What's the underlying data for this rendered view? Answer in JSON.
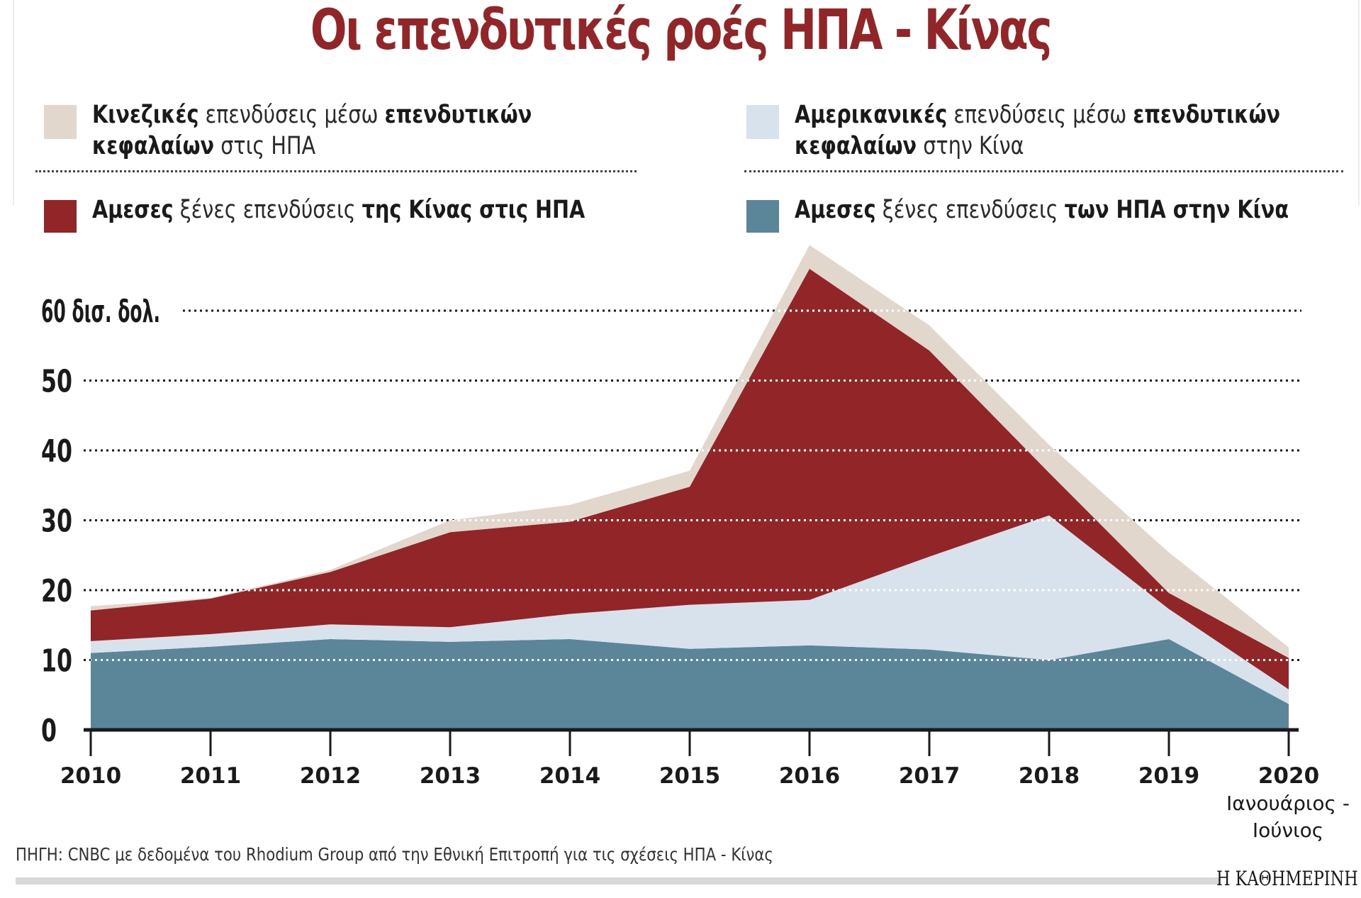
{
  "title": "Οι επενδυτικές ροές ΗΠΑ - Κίνας",
  "legend": {
    "chinese_funds": {
      "bold1": "Κινεζικές",
      "light1": " επενδύσεις μέσω ",
      "bold2": "επενδυτικών",
      "bold3": "κεφαλαίων",
      "light2": " στις ΗΠΑ",
      "color": "#e1d7cc"
    },
    "chinese_fdi": {
      "bold1": "Αμεσες",
      "light1": " ξένες επενδύσεις ",
      "bold2": "της Κίνας στις ΗΠΑ",
      "color": "#922527"
    },
    "us_funds": {
      "bold1": "Αμερικανικές",
      "light1": " επενδύσεις μέσω ",
      "bold2": "επενδυτικών",
      "bold3": "κεφαλαίων",
      "light2": " στην Κίνα",
      "color": "#d8e2ec"
    },
    "us_fdi": {
      "bold1": "Αμεσες",
      "light1": " ξένες επενδύσεις ",
      "bold2": "των ΗΠΑ στην Κίνα",
      "color": "#5b8699"
    }
  },
  "axis": {
    "y_ticks": [
      {
        "value": 0,
        "label": "0"
      },
      {
        "value": 10,
        "label": "10"
      },
      {
        "value": 20,
        "label": "20"
      },
      {
        "value": 30,
        "label": "30"
      },
      {
        "value": 40,
        "label": "40"
      },
      {
        "value": 50,
        "label": "50"
      },
      {
        "value": 60,
        "label": "60 δισ. δολ."
      }
    ],
    "x_sublabel_2020_line1": "Ιανουάριος -",
    "x_sublabel_2020_line2": "Ιούνιος"
  },
  "source": "ΠΗΓΗ: CNBC με δεδομένα του Rhodium Group από την Εθνική Επιτροπή για τις σχέσεις ΗΠΑ - Κίνας",
  "brand": "Η ΚΑΘΗΜΕΡΙΝΗ",
  "chart_data": {
    "type": "area",
    "stacked": true,
    "title": "Οι επενδυτικές ροές ΗΠΑ - Κίνας",
    "xlabel": "",
    "ylabel": "δισ. δολ.",
    "ylim": [
      0,
      70
    ],
    "grid": true,
    "legend_position": "top",
    "categories": [
      "2010",
      "2011",
      "2012",
      "2013",
      "2014",
      "2015",
      "2016",
      "2017",
      "2018",
      "2019",
      "2020"
    ],
    "category_note": {
      "2020": "Ιανουάριος - Ιούνιος"
    },
    "series": [
      {
        "name": "Αμεσες ξένες επενδύσεις των ΗΠΑ στην Κίνα",
        "color": "#5b8699",
        "values": [
          11.0,
          11.9,
          13.0,
          12.6,
          13.0,
          11.6,
          12.1,
          11.5,
          10.0,
          13.0,
          3.7
        ]
      },
      {
        "name": "Αμερικανικές επενδύσεις μέσω επενδυτικών κεφαλαίων στην Κίνα",
        "color": "#d8e2ec",
        "values": [
          1.7,
          1.8,
          2.1,
          2.1,
          3.6,
          6.3,
          6.5,
          13.3,
          20.7,
          4.3,
          2.1
        ]
      },
      {
        "name": "Αμεσες ξένες επενδύσεις της Κίνας στις ΗΠΑ",
        "color": "#922527",
        "values": [
          4.4,
          5.1,
          7.5,
          13.6,
          13.2,
          16.9,
          47.4,
          29.5,
          6.1,
          2.3,
          4.5
        ]
      },
      {
        "name": "Κινεζικές επενδύσεις μέσω επενδυτικών κεφαλαίων στις ΗΠΑ",
        "color": "#e1d7cc",
        "values": [
          0.6,
          0.1,
          0.3,
          1.7,
          2.4,
          2.3,
          3.4,
          3.6,
          4.0,
          5.8,
          1.5
        ]
      }
    ],
    "cumulative_tops": {
      "us_fdi": [
        11.0,
        11.9,
        13.0,
        12.6,
        13.0,
        11.6,
        12.1,
        11.5,
        10.0,
        13.0,
        3.7
      ],
      "us_funds": [
        12.7,
        13.7,
        15.1,
        14.7,
        16.6,
        17.9,
        18.6,
        24.8,
        30.7,
        17.3,
        5.8
      ],
      "china_fdi": [
        17.1,
        18.8,
        22.6,
        28.3,
        29.8,
        34.8,
        66.0,
        54.3,
        36.8,
        19.6,
        10.3
      ],
      "china_funds": [
        17.7,
        18.9,
        22.9,
        30.0,
        32.2,
        37.1,
        69.4,
        57.9,
        40.8,
        25.4,
        11.8
      ]
    }
  }
}
